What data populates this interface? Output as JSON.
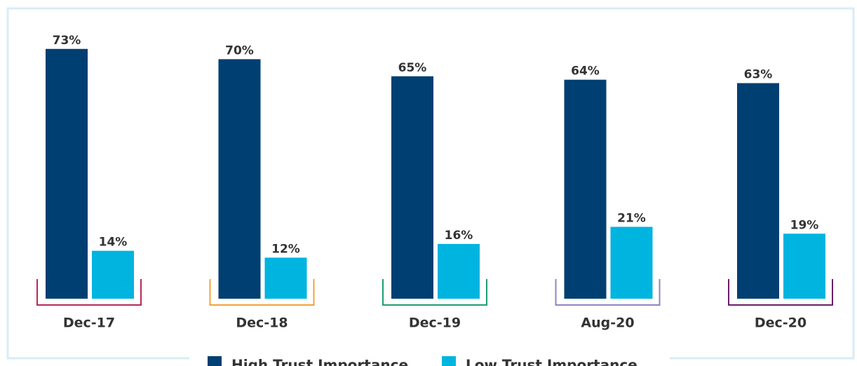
{
  "chart_data": {
    "type": "bar",
    "categories": [
      "Dec-17",
      "Dec-18",
      "Dec-19",
      "Aug-20",
      "Dec-20"
    ],
    "series": [
      {
        "name": "High Trust Importance",
        "color": "#003f72",
        "values": [
          73,
          70,
          65,
          64,
          63
        ],
        "value_labels": [
          "73%",
          "70%",
          "65%",
          "64%",
          "63%"
        ]
      },
      {
        "name": "Low Trust Importance",
        "color": "#00b4e0",
        "values": [
          14,
          12,
          16,
          21,
          19
        ],
        "value_labels": [
          "14%",
          "12%",
          "16%",
          "21%",
          "19%"
        ]
      }
    ],
    "bracket_colors": [
      "#b52a5c",
      "#f0a33a",
      "#1e9e70",
      "#8c86c4",
      "#6b1d6b"
    ],
    "legend": "bottom"
  }
}
